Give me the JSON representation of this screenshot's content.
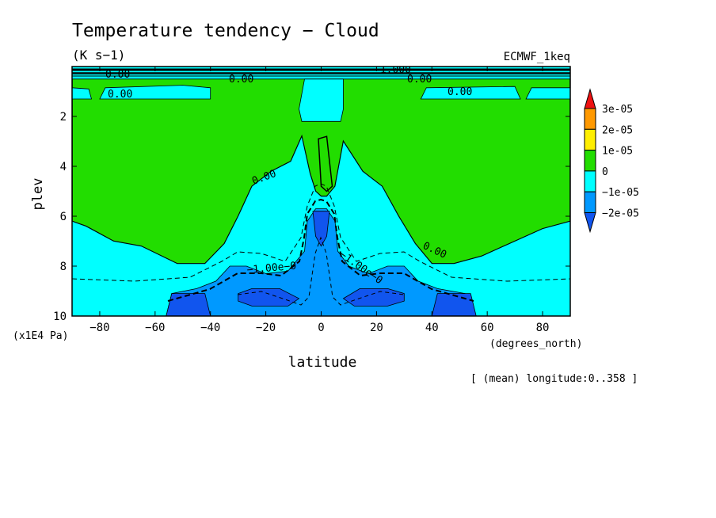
{
  "chart_data": {
    "type": "heatmap",
    "title": "Temperature tendency − Cloud",
    "units": "(K s−1)",
    "dataset": "ECMWF_1keq",
    "xlabel": "latitude",
    "x_units": "(degrees_north)",
    "ylabel": "plev",
    "y_units": "(x1E4 Pa)",
    "mean_note": "[ (mean) longitude:0..358 ]",
    "xlim": [
      -90,
      90
    ],
    "ylim": [
      10,
      0
    ],
    "x_ticks": [
      -80,
      -60,
      -40,
      -20,
      0,
      20,
      40,
      60,
      80
    ],
    "y_ticks": [
      2,
      4,
      6,
      8,
      10
    ],
    "colorbar": {
      "labels": [
        "3e-05",
        "2e-05",
        "1e-05",
        "0",
        "−1e-05",
        "−2e-05"
      ],
      "colors": [
        "#ee1111",
        "#ff9900",
        "#ffee00",
        "#22dd00",
        "#00ffff",
        "#0099ff",
        "#1155ee"
      ]
    },
    "contour_labels": [
      "0.00",
      "0.00",
      "0.00",
      "0.00",
      "0.00",
      "0.00",
      "0.00",
      "−1.00e−0",
      "−1.00e−0",
      "−1.000"
    ],
    "regions": [
      {
        "level": "0..1e-05",
        "color": "#22dd00",
        "poly": [
          [
            -90,
            0.3
          ],
          [
            90,
            0.3
          ],
          [
            90,
            6.2
          ],
          [
            80,
            6.5
          ],
          [
            70,
            7.0
          ],
          [
            58,
            7.6
          ],
          [
            48,
            7.9
          ],
          [
            40,
            7.9
          ],
          [
            34,
            7.1
          ],
          [
            28,
            6.0
          ],
          [
            22,
            4.8
          ],
          [
            15,
            4.2
          ],
          [
            8,
            3.0
          ],
          [
            5,
            4.8
          ],
          [
            2,
            5.2
          ],
          [
            0,
            5.2
          ],
          [
            -2,
            5.0
          ],
          [
            -4,
            4.3
          ],
          [
            -7,
            2.8
          ],
          [
            -11,
            3.8
          ],
          [
            -18,
            4.2
          ],
          [
            -25,
            4.8
          ],
          [
            -30,
            6.0
          ],
          [
            -35,
            7.1
          ],
          [
            -42,
            7.9
          ],
          [
            -52,
            7.9
          ],
          [
            -65,
            7.2
          ],
          [
            -75,
            7.0
          ],
          [
            -85,
            6.4
          ],
          [
            -90,
            6.2
          ]
        ]
      },
      {
        "level": "0..1e-05",
        "color": "#22dd00",
        "poly": [
          [
            2,
            2.8
          ],
          [
            4,
            4.8
          ],
          [
            2,
            5.0
          ],
          [
            0,
            4.8
          ],
          [
            -1,
            2.9
          ]
        ]
      },
      {
        "level": "-1e-05..0",
        "color": "#00ffff",
        "poly": [
          [
            -90,
            0.3
          ],
          [
            90,
            0.3
          ],
          [
            90,
            0.5
          ],
          [
            -90,
            0.5
          ]
        ]
      },
      {
        "level": "-1e-05..0",
        "color": "#00ffff",
        "poly": [
          [
            -78,
            0.85
          ],
          [
            -50,
            0.75
          ],
          [
            -40,
            0.85
          ],
          [
            -40,
            1.3
          ],
          [
            -80,
            1.3
          ]
        ]
      },
      {
        "level": "-1e-05..0",
        "color": "#00ffff",
        "poly": [
          [
            -90,
            0.85
          ],
          [
            -84,
            0.9
          ],
          [
            -83,
            1.3
          ],
          [
            -90,
            1.3
          ]
        ]
      },
      {
        "level": "-1e-05..0",
        "color": "#00ffff",
        "poly": [
          [
            38,
            0.85
          ],
          [
            70,
            0.8
          ],
          [
            72,
            1.3
          ],
          [
            36,
            1.3
          ]
        ]
      },
      {
        "level": "-1e-05..0",
        "color": "#00ffff",
        "poly": [
          [
            76,
            0.85
          ],
          [
            90,
            0.85
          ],
          [
            90,
            1.3
          ],
          [
            74,
            1.3
          ]
        ]
      },
      {
        "level": "-1e-05..0",
        "color": "#00ffff",
        "poly": [
          [
            -6,
            0.5
          ],
          [
            8,
            0.5
          ],
          [
            8,
            1.7
          ],
          [
            7,
            2.2
          ],
          [
            -7,
            2.2
          ],
          [
            -8,
            1.7
          ]
        ]
      },
      {
        "level": "-1e-05..0",
        "color": "#00ffff",
        "poly": [
          [
            -90,
            6.2
          ],
          [
            -85,
            6.4
          ],
          [
            -75,
            7.0
          ],
          [
            -65,
            7.2
          ],
          [
            -52,
            7.9
          ],
          [
            -42,
            7.9
          ],
          [
            -35,
            7.1
          ],
          [
            -30,
            6.0
          ],
          [
            -25,
            4.8
          ],
          [
            -18,
            4.2
          ],
          [
            -11,
            3.8
          ],
          [
            -7,
            2.8
          ],
          [
            -4,
            4.3
          ],
          [
            -2,
            5.0
          ],
          [
            0,
            5.2
          ],
          [
            2,
            5.2
          ],
          [
            5,
            4.8
          ],
          [
            8,
            3.0
          ],
          [
            15,
            4.2
          ],
          [
            22,
            4.8
          ],
          [
            28,
            6.0
          ],
          [
            34,
            7.1
          ],
          [
            40,
            7.9
          ],
          [
            48,
            7.9
          ],
          [
            58,
            7.6
          ],
          [
            70,
            7.0
          ],
          [
            80,
            6.5
          ],
          [
            90,
            6.2
          ],
          [
            90,
            10
          ],
          [
            -90,
            10
          ]
        ]
      },
      {
        "level": "-2e-05..-1e-05",
        "color": "#0099ff",
        "poly": [
          [
            -56,
            10
          ],
          [
            -54,
            9.1
          ],
          [
            -45,
            8.9
          ],
          [
            -38,
            8.6
          ],
          [
            -33,
            8.0
          ],
          [
            -27,
            8.0
          ],
          [
            -20,
            8.3
          ],
          [
            -12,
            8.2
          ],
          [
            -6,
            7.4
          ],
          [
            -5,
            6.2
          ],
          [
            -2,
            5.7
          ],
          [
            2,
            5.7
          ],
          [
            5,
            6.2
          ],
          [
            6,
            7.4
          ],
          [
            10,
            8.0
          ],
          [
            17,
            8.3
          ],
          [
            24,
            8.0
          ],
          [
            30,
            8.0
          ],
          [
            35,
            8.6
          ],
          [
            42,
            8.9
          ],
          [
            52,
            9.1
          ],
          [
            56,
            10
          ]
        ]
      },
      {
        "level": "<-2e-05",
        "color": "#1155ee",
        "poly": [
          [
            -54,
            9.1
          ],
          [
            -42,
            9.1
          ],
          [
            -40,
            10
          ],
          [
            -56,
            10
          ]
        ]
      },
      {
        "level": "<-2e-05",
        "color": "#1155ee",
        "poly": [
          [
            42,
            9.1
          ],
          [
            54,
            9.1
          ],
          [
            56,
            10
          ],
          [
            40,
            10
          ]
        ]
      },
      {
        "level": "<-2e-05",
        "color": "#1155ee",
        "poly": [
          [
            -30,
            9.1
          ],
          [
            -25,
            8.9
          ],
          [
            -15,
            8.9
          ],
          [
            -8,
            9.3
          ],
          [
            -12,
            9.6
          ],
          [
            -25,
            9.6
          ],
          [
            -30,
            9.4
          ]
        ]
      },
      {
        "level": "<-2e-05",
        "color": "#1155ee",
        "poly": [
          [
            8,
            9.3
          ],
          [
            14,
            8.9
          ],
          [
            24,
            8.9
          ],
          [
            30,
            9.1
          ],
          [
            30,
            9.4
          ],
          [
            24,
            9.6
          ],
          [
            12,
            9.6
          ]
        ]
      },
      {
        "level": "<-2e-05",
        "color": "#1155ee",
        "poly": [
          [
            -3,
            5.8
          ],
          [
            3,
            5.8
          ],
          [
            2,
            6.8
          ],
          [
            0,
            7.2
          ],
          [
            -2,
            6.8
          ]
        ]
      }
    ]
  }
}
